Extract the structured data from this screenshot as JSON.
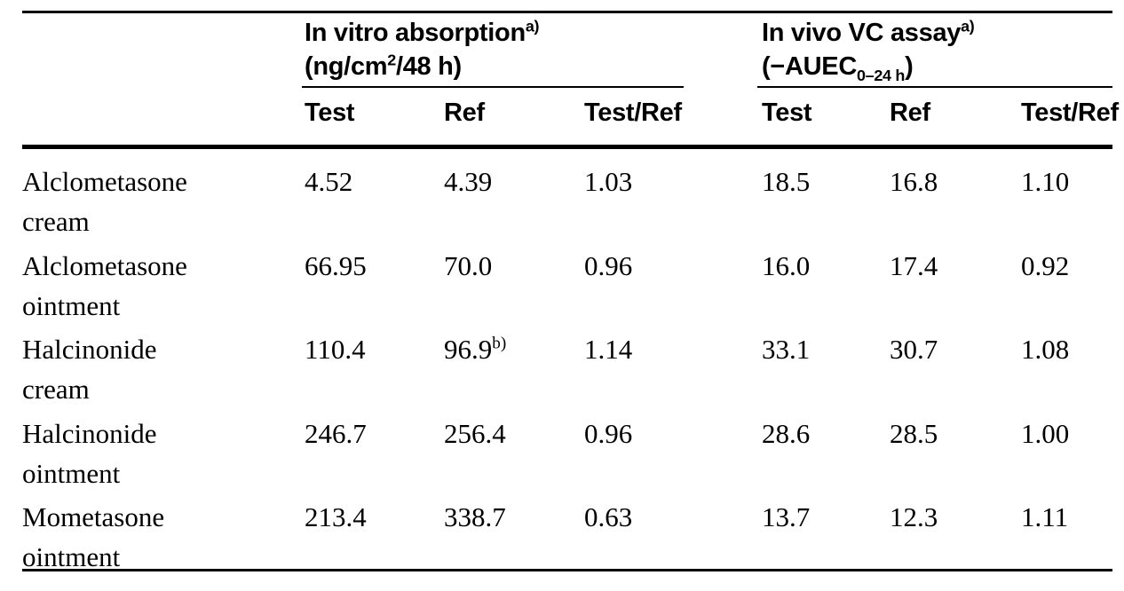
{
  "table": {
    "colors": {
      "background": "#ffffff",
      "text": "#000000",
      "rules": "#000000"
    },
    "col_groups": [
      {
        "title": "In vitro absorption",
        "title_sup": "a)",
        "unit_prefix": "(ng/cm",
        "unit_sup": "2",
        "unit_suffix": "/48 h)"
      },
      {
        "title": "In vivo VC assay",
        "title_sup": "a)",
        "unit_prefix": "(−AUEC",
        "unit_sub": "0–24 h",
        "unit_suffix": ")"
      }
    ],
    "sub_headers": [
      "Test",
      "Ref",
      "Test/Ref",
      "Test",
      "Ref",
      "Test/Ref"
    ],
    "rows": [
      {
        "name_line1": "Alclometasone",
        "name_line2": "cream",
        "cells": [
          {
            "v": "4.52",
            "sup": ""
          },
          {
            "v": "4.39",
            "sup": ""
          },
          {
            "v": "1.03",
            "sup": ""
          },
          {
            "v": "18.5",
            "sup": ""
          },
          {
            "v": "16.8",
            "sup": ""
          },
          {
            "v": "1.10",
            "sup": ""
          }
        ]
      },
      {
        "name_line1": "Alclometasone",
        "name_line2": "ointment",
        "cells": [
          {
            "v": "66.95",
            "sup": ""
          },
          {
            "v": "70.0",
            "sup": ""
          },
          {
            "v": "0.96",
            "sup": ""
          },
          {
            "v": "16.0",
            "sup": ""
          },
          {
            "v": "17.4",
            "sup": ""
          },
          {
            "v": "0.92",
            "sup": ""
          }
        ]
      },
      {
        "name_line1": "Halcinonide",
        "name_line2": "cream",
        "cells": [
          {
            "v": "110.4",
            "sup": ""
          },
          {
            "v": "96.9",
            "sup": "b)"
          },
          {
            "v": "1.14",
            "sup": ""
          },
          {
            "v": "33.1",
            "sup": ""
          },
          {
            "v": "30.7",
            "sup": ""
          },
          {
            "v": "1.08",
            "sup": ""
          }
        ]
      },
      {
        "name_line1": "Halcinonide",
        "name_line2": "ointment",
        "cells": [
          {
            "v": "246.7",
            "sup": ""
          },
          {
            "v": "256.4",
            "sup": ""
          },
          {
            "v": "0.96",
            "sup": ""
          },
          {
            "v": "28.6",
            "sup": ""
          },
          {
            "v": "28.5",
            "sup": ""
          },
          {
            "v": "1.00",
            "sup": ""
          }
        ]
      },
      {
        "name_line1": "Mometasone",
        "name_line2": "ointment",
        "cells": [
          {
            "v": "213.4",
            "sup": ""
          },
          {
            "v": "338.7",
            "sup": ""
          },
          {
            "v": "0.63",
            "sup": ""
          },
          {
            "v": "13.7",
            "sup": ""
          },
          {
            "v": "12.3",
            "sup": ""
          },
          {
            "v": "1.11",
            "sup": ""
          }
        ]
      }
    ]
  }
}
